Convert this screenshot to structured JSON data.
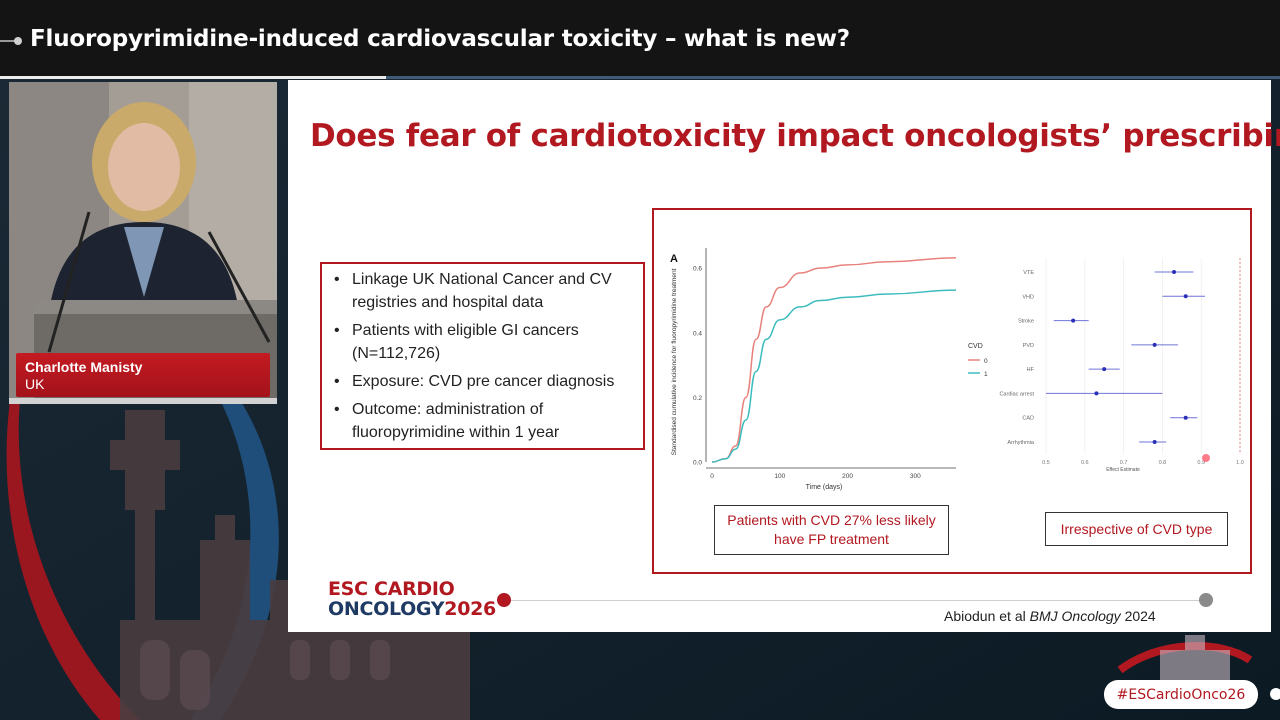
{
  "header": {
    "title": "Fluoropyrimidine-induced cardiovascular toxicity – what is new?"
  },
  "speaker": {
    "name": "Charlotte Manisty",
    "country": "UK"
  },
  "slide": {
    "title": "Does fear of cardiotoxicity impact oncologists’ prescribing?",
    "bullets": [
      "Linkage UK National Cancer and CV registries and hospital data",
      "Patients with eligible GI cancers (N=112,726)",
      "Exposure: CVD pre cancer diagnosis",
      "Outcome: administration of fluoropyrimidine within 1 year"
    ],
    "callout_left": "Patients with CVD 27% less likely have FP treatment",
    "callout_right": "Irrespective of CVD type",
    "citation_authors": "Abiodun et al",
    "citation_journal": "BMJ Oncology",
    "citation_year": "2024",
    "brand_line1": "ESC CARDIO",
    "brand_line2": "ONCOLOGY",
    "brand_year": "2026"
  },
  "hashtag": "#ESCardioOnco26",
  "colors": {
    "brand_red": "#b21820",
    "brand_navy": "#1f3b63",
    "series_0": "#e8827c",
    "series_1": "#3cbcbf",
    "forest_point": "#2a2fb8"
  },
  "chart_data": [
    {
      "type": "line",
      "panel_label": "A",
      "xlabel": "Time (days)",
      "ylabel": "Standardised cumulative incidence for fluoropyrimidine treatment",
      "xlim": [
        0,
        360
      ],
      "ylim": [
        0,
        0.65
      ],
      "x_ticks": [
        "0",
        "100",
        "200",
        "300"
      ],
      "y_ticks": [
        "0.0",
        "0.2",
        "0.4",
        "0.6"
      ],
      "legend_title": "CVD",
      "series": [
        {
          "name": "0",
          "points": [
            [
              0,
              0
            ],
            [
              20,
              0.01
            ],
            [
              35,
              0.05
            ],
            [
              50,
              0.2
            ],
            [
              65,
              0.38
            ],
            [
              80,
              0.48
            ],
            [
              100,
              0.54
            ],
            [
              130,
              0.585
            ],
            [
              160,
              0.6
            ],
            [
              200,
              0.61
            ],
            [
              260,
              0.62
            ],
            [
              360,
              0.632
            ]
          ]
        },
        {
          "name": "1",
          "points": [
            [
              0,
              0
            ],
            [
              20,
              0.01
            ],
            [
              35,
              0.04
            ],
            [
              50,
              0.13
            ],
            [
              65,
              0.28
            ],
            [
              80,
              0.38
            ],
            [
              100,
              0.44
            ],
            [
              130,
              0.48
            ],
            [
              160,
              0.5
            ],
            [
              200,
              0.51
            ],
            [
              260,
              0.52
            ],
            [
              360,
              0.532
            ]
          ]
        }
      ]
    },
    {
      "type": "scatter",
      "subtype": "forest",
      "xlabel": "Effect Estimate",
      "xlim": [
        0.5,
        1.0
      ],
      "x_ticks": [
        "0.5",
        "0.6",
        "0.7",
        "0.8",
        "0.9",
        "1.0"
      ],
      "categories": [
        "VTE",
        "VHD",
        "Stroke",
        "PVD",
        "HF",
        "Cardiac arrest",
        "CAD",
        "Arrhythmia"
      ],
      "estimates": [
        0.83,
        0.86,
        0.57,
        0.78,
        0.65,
        0.63,
        0.86,
        0.78
      ],
      "lower": [
        0.78,
        0.8,
        0.52,
        0.72,
        0.61,
        0.5,
        0.82,
        0.74
      ],
      "upper": [
        0.88,
        0.91,
        0.61,
        0.84,
        0.69,
        0.8,
        0.89,
        0.81
      ]
    }
  ]
}
